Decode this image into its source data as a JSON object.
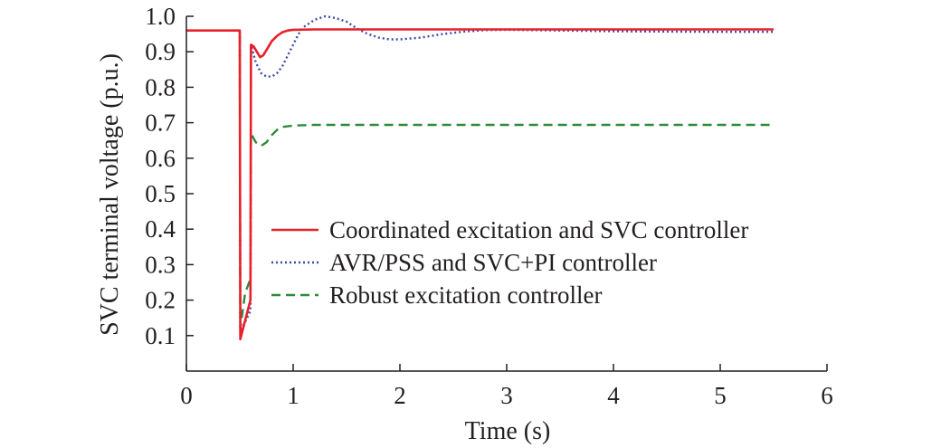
{
  "chart_data": {
    "type": "line",
    "title": "",
    "xlabel": "Time (s)",
    "ylabel": "SVC terminal voltage (p.u.)",
    "xlim": [
      0,
      6
    ],
    "ylim": [
      0,
      1.0
    ],
    "x_ticks": [
      "0",
      "1",
      "2",
      "3",
      "4",
      "5",
      "6"
    ],
    "y_ticks": [
      "0.1",
      "0.2",
      "0.3",
      "0.4",
      "0.5",
      "0.6",
      "0.7",
      "0.8",
      "0.9",
      "1.0"
    ],
    "grid": false,
    "legend_position": "center-right",
    "series": [
      {
        "name": "Coordinated excitation and SVC controller",
        "color": "#e8202a",
        "style": "solid",
        "points": [
          [
            0,
            0.96
          ],
          [
            0.5,
            0.96
          ],
          [
            0.505,
            0.09
          ],
          [
            0.6,
            0.2
          ],
          [
            0.605,
            0.92
          ],
          [
            0.63,
            0.915
          ],
          [
            0.66,
            0.9
          ],
          [
            0.69,
            0.885
          ],
          [
            0.72,
            0.89
          ],
          [
            0.76,
            0.91
          ],
          [
            0.8,
            0.93
          ],
          [
            0.85,
            0.945
          ],
          [
            0.9,
            0.955
          ],
          [
            0.95,
            0.96
          ],
          [
            1.0,
            0.962
          ],
          [
            1.2,
            0.963
          ],
          [
            2,
            0.963
          ],
          [
            3,
            0.963
          ],
          [
            4,
            0.963
          ],
          [
            5,
            0.963
          ],
          [
            5.5,
            0.963
          ]
        ]
      },
      {
        "name": "AVR/PSS and SVC+PI controller",
        "color": "#3b4ba8",
        "style": "dotted",
        "points": [
          [
            0,
            0.96
          ],
          [
            0.5,
            0.96
          ],
          [
            0.505,
            0.11
          ],
          [
            0.6,
            0.17
          ],
          [
            0.605,
            0.92
          ],
          [
            0.65,
            0.87
          ],
          [
            0.7,
            0.84
          ],
          [
            0.75,
            0.83
          ],
          [
            0.8,
            0.83
          ],
          [
            0.85,
            0.84
          ],
          [
            0.9,
            0.86
          ],
          [
            0.95,
            0.89
          ],
          [
            1.0,
            0.92
          ],
          [
            1.05,
            0.95
          ],
          [
            1.1,
            0.97
          ],
          [
            1.2,
            0.99
          ],
          [
            1.3,
            1.0
          ],
          [
            1.4,
            0.995
          ],
          [
            1.5,
            0.985
          ],
          [
            1.6,
            0.965
          ],
          [
            1.7,
            0.95
          ],
          [
            1.8,
            0.94
          ],
          [
            1.9,
            0.935
          ],
          [
            2.0,
            0.935
          ],
          [
            2.2,
            0.94
          ],
          [
            2.4,
            0.95
          ],
          [
            2.6,
            0.957
          ],
          [
            2.8,
            0.961
          ],
          [
            3.0,
            0.962
          ],
          [
            3.5,
            0.96
          ],
          [
            4,
            0.958
          ],
          [
            4.5,
            0.957
          ],
          [
            5,
            0.956
          ],
          [
            5.5,
            0.956
          ]
        ]
      },
      {
        "name": "Robust excitation controller",
        "color": "#2e8b3a",
        "style": "dashed",
        "points": [
          [
            0,
            0.96
          ],
          [
            0.5,
            0.96
          ],
          [
            0.505,
            0.12
          ],
          [
            0.55,
            0.22
          ],
          [
            0.6,
            0.26
          ],
          [
            0.605,
            0.67
          ],
          [
            0.65,
            0.645
          ],
          [
            0.7,
            0.635
          ],
          [
            0.75,
            0.645
          ],
          [
            0.8,
            0.665
          ],
          [
            0.85,
            0.68
          ],
          [
            0.9,
            0.688
          ],
          [
            1.0,
            0.692
          ],
          [
            1.2,
            0.694
          ],
          [
            2,
            0.694
          ],
          [
            3,
            0.694
          ],
          [
            4,
            0.694
          ],
          [
            5,
            0.694
          ],
          [
            5.5,
            0.694
          ]
        ]
      }
    ]
  }
}
